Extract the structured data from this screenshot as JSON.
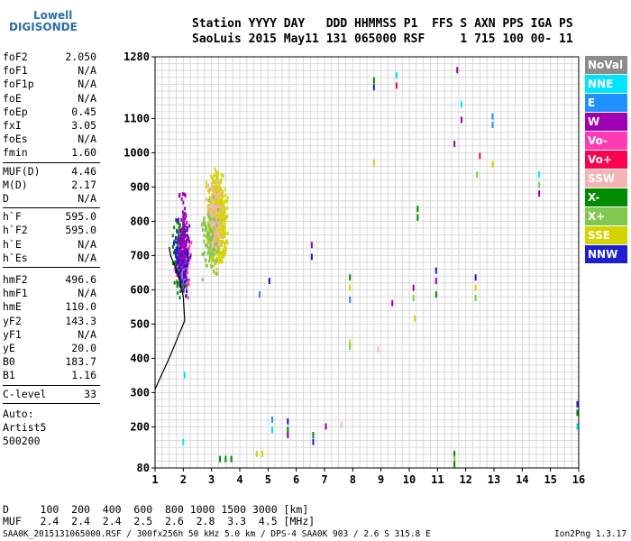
{
  "logo": {
    "line1": "Lowell",
    "line2": "DIGISONDE"
  },
  "header": {
    "line1": "Station YYYY DAY   DDD HHMMSS P1  FFS S AXN PPS IGA PS",
    "line2": "SaoLuis 2015 May11 131 065000 RSF     1 715 100 00- 11"
  },
  "params_group1": [
    {
      "label": "foF2",
      "value": "2.050"
    },
    {
      "label": "foF1",
      "value": "N/A"
    },
    {
      "label": "foF1p",
      "value": "N/A"
    },
    {
      "label": "foE",
      "value": "N/A"
    },
    {
      "label": "foEp",
      "value": "0.45"
    },
    {
      "label": "fxI",
      "value": "3.05"
    },
    {
      "label": "foEs",
      "value": "N/A"
    },
    {
      "label": "fmin",
      "value": "1.60"
    }
  ],
  "params_group2": [
    {
      "label": "MUF(D)",
      "value": "4.46"
    },
    {
      "label": "M(D)",
      "value": "2.17"
    },
    {
      "label": "D",
      "value": "N/A"
    }
  ],
  "params_group3": [
    {
      "label": "h`F",
      "value": "595.0"
    },
    {
      "label": "h`F2",
      "value": "595.0"
    },
    {
      "label": "h`E",
      "value": "N/A"
    },
    {
      "label": "h`Es",
      "value": "N/A"
    }
  ],
  "params_group4": [
    {
      "label": "hmF2",
      "value": "496.6"
    },
    {
      "label": "hmF1",
      "value": "N/A"
    },
    {
      "label": "hmE",
      "value": "110.0"
    },
    {
      "label": "yF2",
      "value": "143.3"
    },
    {
      "label": "yF1",
      "value": "N/A"
    },
    {
      "label": "yE",
      "value": "20.0"
    },
    {
      "label": "B0",
      "value": "183.7"
    },
    {
      "label": "B1",
      "value": "1.16"
    }
  ],
  "clevel": {
    "label": "C-level",
    "value": "33"
  },
  "auto_lines": [
    "Auto:",
    "Artist5",
    "500200"
  ],
  "legend": [
    {
      "label": "NoVal",
      "color": "#8c8c8c",
      "text_color": "#ffffff"
    },
    {
      "label": "NNE",
      "color": "#00e5ff",
      "text_color": "#ffffff"
    },
    {
      "label": "E",
      "color": "#1e90ff",
      "text_color": "#ffffff"
    },
    {
      "label": "W",
      "color": "#a000b4",
      "text_color": "#ffffff"
    },
    {
      "label": "Vo-",
      "color": "#ff3cb4",
      "text_color": "#ffffff"
    },
    {
      "label": "Vo+",
      "color": "#ff0050",
      "text_color": "#ffffff"
    },
    {
      "label": "SSW",
      "color": "#f5b4b4",
      "text_color": "#ffffff"
    },
    {
      "label": "X-",
      "color": "#008c00",
      "text_color": "#ffffff"
    },
    {
      "label": "X+",
      "color": "#82c850",
      "text_color": "#ffffff"
    },
    {
      "label": "SSE",
      "color": "#d4d400",
      "text_color": "#ffffff"
    },
    {
      "label": "NNW",
      "color": "#1e1ed2",
      "text_color": "#ffffff"
    }
  ],
  "bottom_table": {
    "row1": "D     100  200  400  600  800 1000 1500 3000 [km]",
    "row2": "MUF   2.4  2.4  2.4  2.5  2.6  2.8  3.3  4.5 [MHz]"
  },
  "footer": {
    "left": "SAA0K_2015131065000.RSF / 300fx256h 50 kHz 5.0 km / DPS-4 SAA0K 903 / 2.6 S 315.8 E",
    "right": "Ion2Png 1.3.17"
  },
  "chart_data": {
    "type": "scatter",
    "title": "",
    "xlabel": "",
    "ylabel": "",
    "xlim": [
      1,
      16
    ],
    "ylim": [
      80,
      1280
    ],
    "x_ticks": [
      1,
      2,
      3,
      4,
      5,
      6,
      7,
      8,
      9,
      10,
      11,
      12,
      13,
      14,
      15,
      16
    ],
    "y_ticks": [
      80,
      200,
      300,
      400,
      500,
      600,
      700,
      800,
      900,
      1000,
      1100,
      1280
    ],
    "grid": true,
    "clusters": [
      {
        "name": "X-",
        "color": "#008c00",
        "x_center": 1.9,
        "x_spread": 0.35,
        "y_center": 700,
        "y_spread": 130,
        "count": 180
      },
      {
        "name": "Vo-",
        "color": "#ff3cb4",
        "x_center": 2.0,
        "x_spread": 0.35,
        "y_center": 680,
        "y_spread": 120,
        "count": 110
      },
      {
        "name": "NNW",
        "color": "#1e1ed2",
        "x_center": 1.95,
        "x_spread": 0.35,
        "y_center": 690,
        "y_spread": 130,
        "count": 120
      },
      {
        "name": "W",
        "color": "#a000b4",
        "x_center": 2.0,
        "x_spread": 0.3,
        "y_center": 760,
        "y_spread": 160,
        "count": 80
      },
      {
        "name": "SSE",
        "color": "#d4d400",
        "x_center": 3.2,
        "x_spread": 0.45,
        "y_center": 800,
        "y_spread": 180,
        "count": 600
      },
      {
        "name": "SSW",
        "color": "#f5b4b4",
        "x_center": 3.1,
        "x_spread": 0.35,
        "y_center": 820,
        "y_spread": 170,
        "count": 120
      },
      {
        "name": "X+",
        "color": "#82c850",
        "x_center": 2.9,
        "x_spread": 0.45,
        "y_center": 740,
        "y_spread": 150,
        "count": 90
      }
    ],
    "sparse_points": [
      {
        "x": 6.55,
        "y": 735,
        "series": "W"
      },
      {
        "x": 6.55,
        "y": 700,
        "series": "NNW"
      },
      {
        "x": 5.05,
        "y": 630,
        "series": "NNW"
      },
      {
        "x": 4.7,
        "y": 590,
        "series": "E"
      },
      {
        "x": 7.9,
        "y": 640,
        "series": "X-"
      },
      {
        "x": 7.9,
        "y": 610,
        "series": "SSE"
      },
      {
        "x": 7.9,
        "y": 575,
        "series": "E"
      },
      {
        "x": 7.9,
        "y": 450,
        "series": "SSE"
      },
      {
        "x": 7.9,
        "y": 438,
        "series": "X+"
      },
      {
        "x": 8.75,
        "y": 1215,
        "series": "X-"
      },
      {
        "x": 8.75,
        "y": 1195,
        "series": "NNW"
      },
      {
        "x": 9.55,
        "y": 1230,
        "series": "NNE"
      },
      {
        "x": 9.55,
        "y": 1200,
        "series": "Vo+"
      },
      {
        "x": 8.75,
        "y": 975,
        "series": "SSE"
      },
      {
        "x": 9.4,
        "y": 565,
        "series": "W"
      },
      {
        "x": 10.15,
        "y": 610,
        "series": "W"
      },
      {
        "x": 10.15,
        "y": 580,
        "series": "X+"
      },
      {
        "x": 10.3,
        "y": 840,
        "series": "X-"
      },
      {
        "x": 10.3,
        "y": 815,
        "series": "X-"
      },
      {
        "x": 10.2,
        "y": 520,
        "series": "SSE"
      },
      {
        "x": 10.95,
        "y": 660,
        "series": "NNW"
      },
      {
        "x": 10.95,
        "y": 630,
        "series": "W"
      },
      {
        "x": 10.95,
        "y": 590,
        "series": "X-"
      },
      {
        "x": 11.7,
        "y": 1245,
        "series": "W"
      },
      {
        "x": 11.85,
        "y": 1145,
        "series": "NNE"
      },
      {
        "x": 11.85,
        "y": 1100,
        "series": "W"
      },
      {
        "x": 11.6,
        "y": 1030,
        "series": "W"
      },
      {
        "x": 12.35,
        "y": 640,
        "series": "NNW"
      },
      {
        "x": 12.35,
        "y": 610,
        "series": "SSE"
      },
      {
        "x": 12.35,
        "y": 580,
        "series": "X+"
      },
      {
        "x": 12.5,
        "y": 995,
        "series": "Vo+"
      },
      {
        "x": 12.4,
        "y": 940,
        "series": "X+"
      },
      {
        "x": 12.95,
        "y": 1110,
        "series": "E"
      },
      {
        "x": 12.95,
        "y": 1085,
        "series": "E"
      },
      {
        "x": 12.95,
        "y": 970,
        "series": "SSE"
      },
      {
        "x": 14.6,
        "y": 940,
        "series": "NNE"
      },
      {
        "x": 14.6,
        "y": 910,
        "series": "X+"
      },
      {
        "x": 14.6,
        "y": 885,
        "series": "W"
      },
      {
        "x": 15.95,
        "y": 270,
        "series": "NNW"
      },
      {
        "x": 15.95,
        "y": 245,
        "series": "X-"
      },
      {
        "x": 15.95,
        "y": 205,
        "series": "NNE"
      },
      {
        "x": 5.15,
        "y": 225,
        "series": "E"
      },
      {
        "x": 5.15,
        "y": 195,
        "series": "NNE"
      },
      {
        "x": 5.7,
        "y": 220,
        "series": "NNW"
      },
      {
        "x": 5.7,
        "y": 195,
        "series": "X-"
      },
      {
        "x": 5.7,
        "y": 180,
        "series": "W"
      },
      {
        "x": 6.6,
        "y": 180,
        "series": "X-"
      },
      {
        "x": 6.6,
        "y": 160,
        "series": "NNW"
      },
      {
        "x": 7.05,
        "y": 205,
        "series": "W"
      },
      {
        "x": 7.6,
        "y": 210,
        "series": "SSW"
      },
      {
        "x": 8.9,
        "y": 430,
        "series": "SSW"
      },
      {
        "x": 11.6,
        "y": 125,
        "series": "X-"
      },
      {
        "x": 11.6,
        "y": 110,
        "series": "X+"
      },
      {
        "x": 11.6,
        "y": 95,
        "series": "X-"
      },
      {
        "x": 3.3,
        "y": 110,
        "series": "X-"
      },
      {
        "x": 3.5,
        "y": 110,
        "series": "X-"
      },
      {
        "x": 3.7,
        "y": 110,
        "series": "X-"
      },
      {
        "x": 4.6,
        "y": 125,
        "series": "SSE"
      },
      {
        "x": 4.8,
        "y": 125,
        "series": "SSE"
      },
      {
        "x": 2.05,
        "y": 355,
        "series": "NNE"
      },
      {
        "x": 2.0,
        "y": 160,
        "series": "NNE"
      }
    ],
    "profile_curve": [
      {
        "x": 1.0,
        "y": 310
      },
      {
        "x": 1.5,
        "y": 400
      },
      {
        "x": 1.9,
        "y": 480
      },
      {
        "x": 2.05,
        "y": 510
      },
      {
        "x": 2.0,
        "y": 580
      },
      {
        "x": 1.8,
        "y": 650
      },
      {
        "x": 1.55,
        "y": 700
      },
      {
        "x": 1.5,
        "y": 725
      }
    ]
  }
}
